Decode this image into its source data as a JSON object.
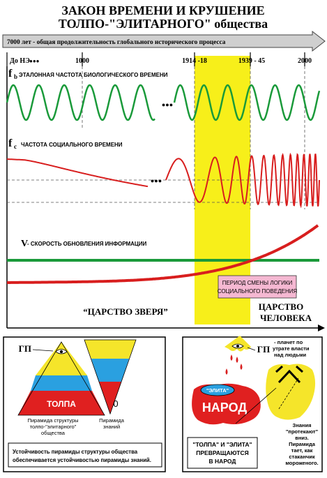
{
  "title": {
    "line1": "ЗАКОН ВРЕМЕНИ И КРУШЕНИЕ",
    "line2": "ТОЛПО-\"ЭЛИТАРНОГО\" общества"
  },
  "timeline": {
    "arrow_text": "7000 лет - общая продолжительность глобального исторического процесса",
    "ticks": [
      {
        "label": "До НЭ"
      },
      {
        "label": "1000"
      },
      {
        "label": "1914 -18"
      },
      {
        "label": "1939 - 45"
      },
      {
        "label": "2000"
      }
    ],
    "bullet_dots": "●●●"
  },
  "freq_bio": {
    "symbol": "f",
    "subscript": "b",
    "label": "ЭТАЛОННАЯ ЧАСТОТА БИОЛОГИЧЕСКОГО ВРЕМЕНИ"
  },
  "freq_soc": {
    "symbol": "f",
    "subscript": "c",
    "label": "ЧАСТОТА СОЦИАЛЬНОГО ВРЕМЕНИ"
  },
  "info_speed": {
    "symbol": "V",
    "label": "- СКОРОСТЬ ОБНОВЛЕНИЯ ИНФОРМАЦИИ"
  },
  "period_box": {
    "line1": "ПЕРИОД СМЕНЫ ЛОГИКИ",
    "line2": "СОЦИАЛЬНОГО ПОВЕДЕНИЯ"
  },
  "beast_kingdom": "“ЦАРСТВО ЗВЕРЯ”",
  "human_kingdom": {
    "line1": "ЦАРСТВО",
    "line2": "ЧЕЛОВЕКА"
  },
  "ellipsis": "●●●",
  "bottom_left": {
    "gp_label": "ГП",
    "crowd_label": "ТОЛПА",
    "zero_label": "0",
    "pyramid_caption": [
      "Пирамида структуры",
      "толпо-\"элитарного\"",
      "общества"
    ],
    "knowledge_caption": [
      "Пирамида",
      "знаний"
    ],
    "stability_note": [
      "Устойчивость пирамиды структуры общества",
      "обеспечивается устойчивостью пирамиды знаний."
    ]
  },
  "bottom_right": {
    "gp_label": "ГП",
    "gp_note": [
      "- плачет по",
      "утрате власти",
      "над людьми"
    ],
    "elite_label": "\"ЭЛИТА\"",
    "people_label": "НАРОД",
    "transform_caption": [
      "\"ТОЛПА\" И \"ЭЛИТА\"",
      "ПРЕВРАЩАЮТСЯ",
      "В НАРОД"
    ],
    "knowledge_note": [
      "Знания",
      "\"протекают\"",
      "вниз.",
      "Пирамида",
      "тает, как",
      "стаканчик",
      "мороженого."
    ]
  },
  "colors": {
    "bio_wave": "#1a9a3a",
    "soc_wave": "#d81e1e",
    "info_line": "#d81e1e",
    "baseline": "#1a9a3a",
    "highlight": "#f7ef1a",
    "arrow_fill": "#cfcfcf",
    "pink_box": "#f5b8d2",
    "pyramid_yellow": "#f5e52a",
    "pyramid_blue": "#2aa0e0",
    "pyramid_red": "#e02020"
  }
}
